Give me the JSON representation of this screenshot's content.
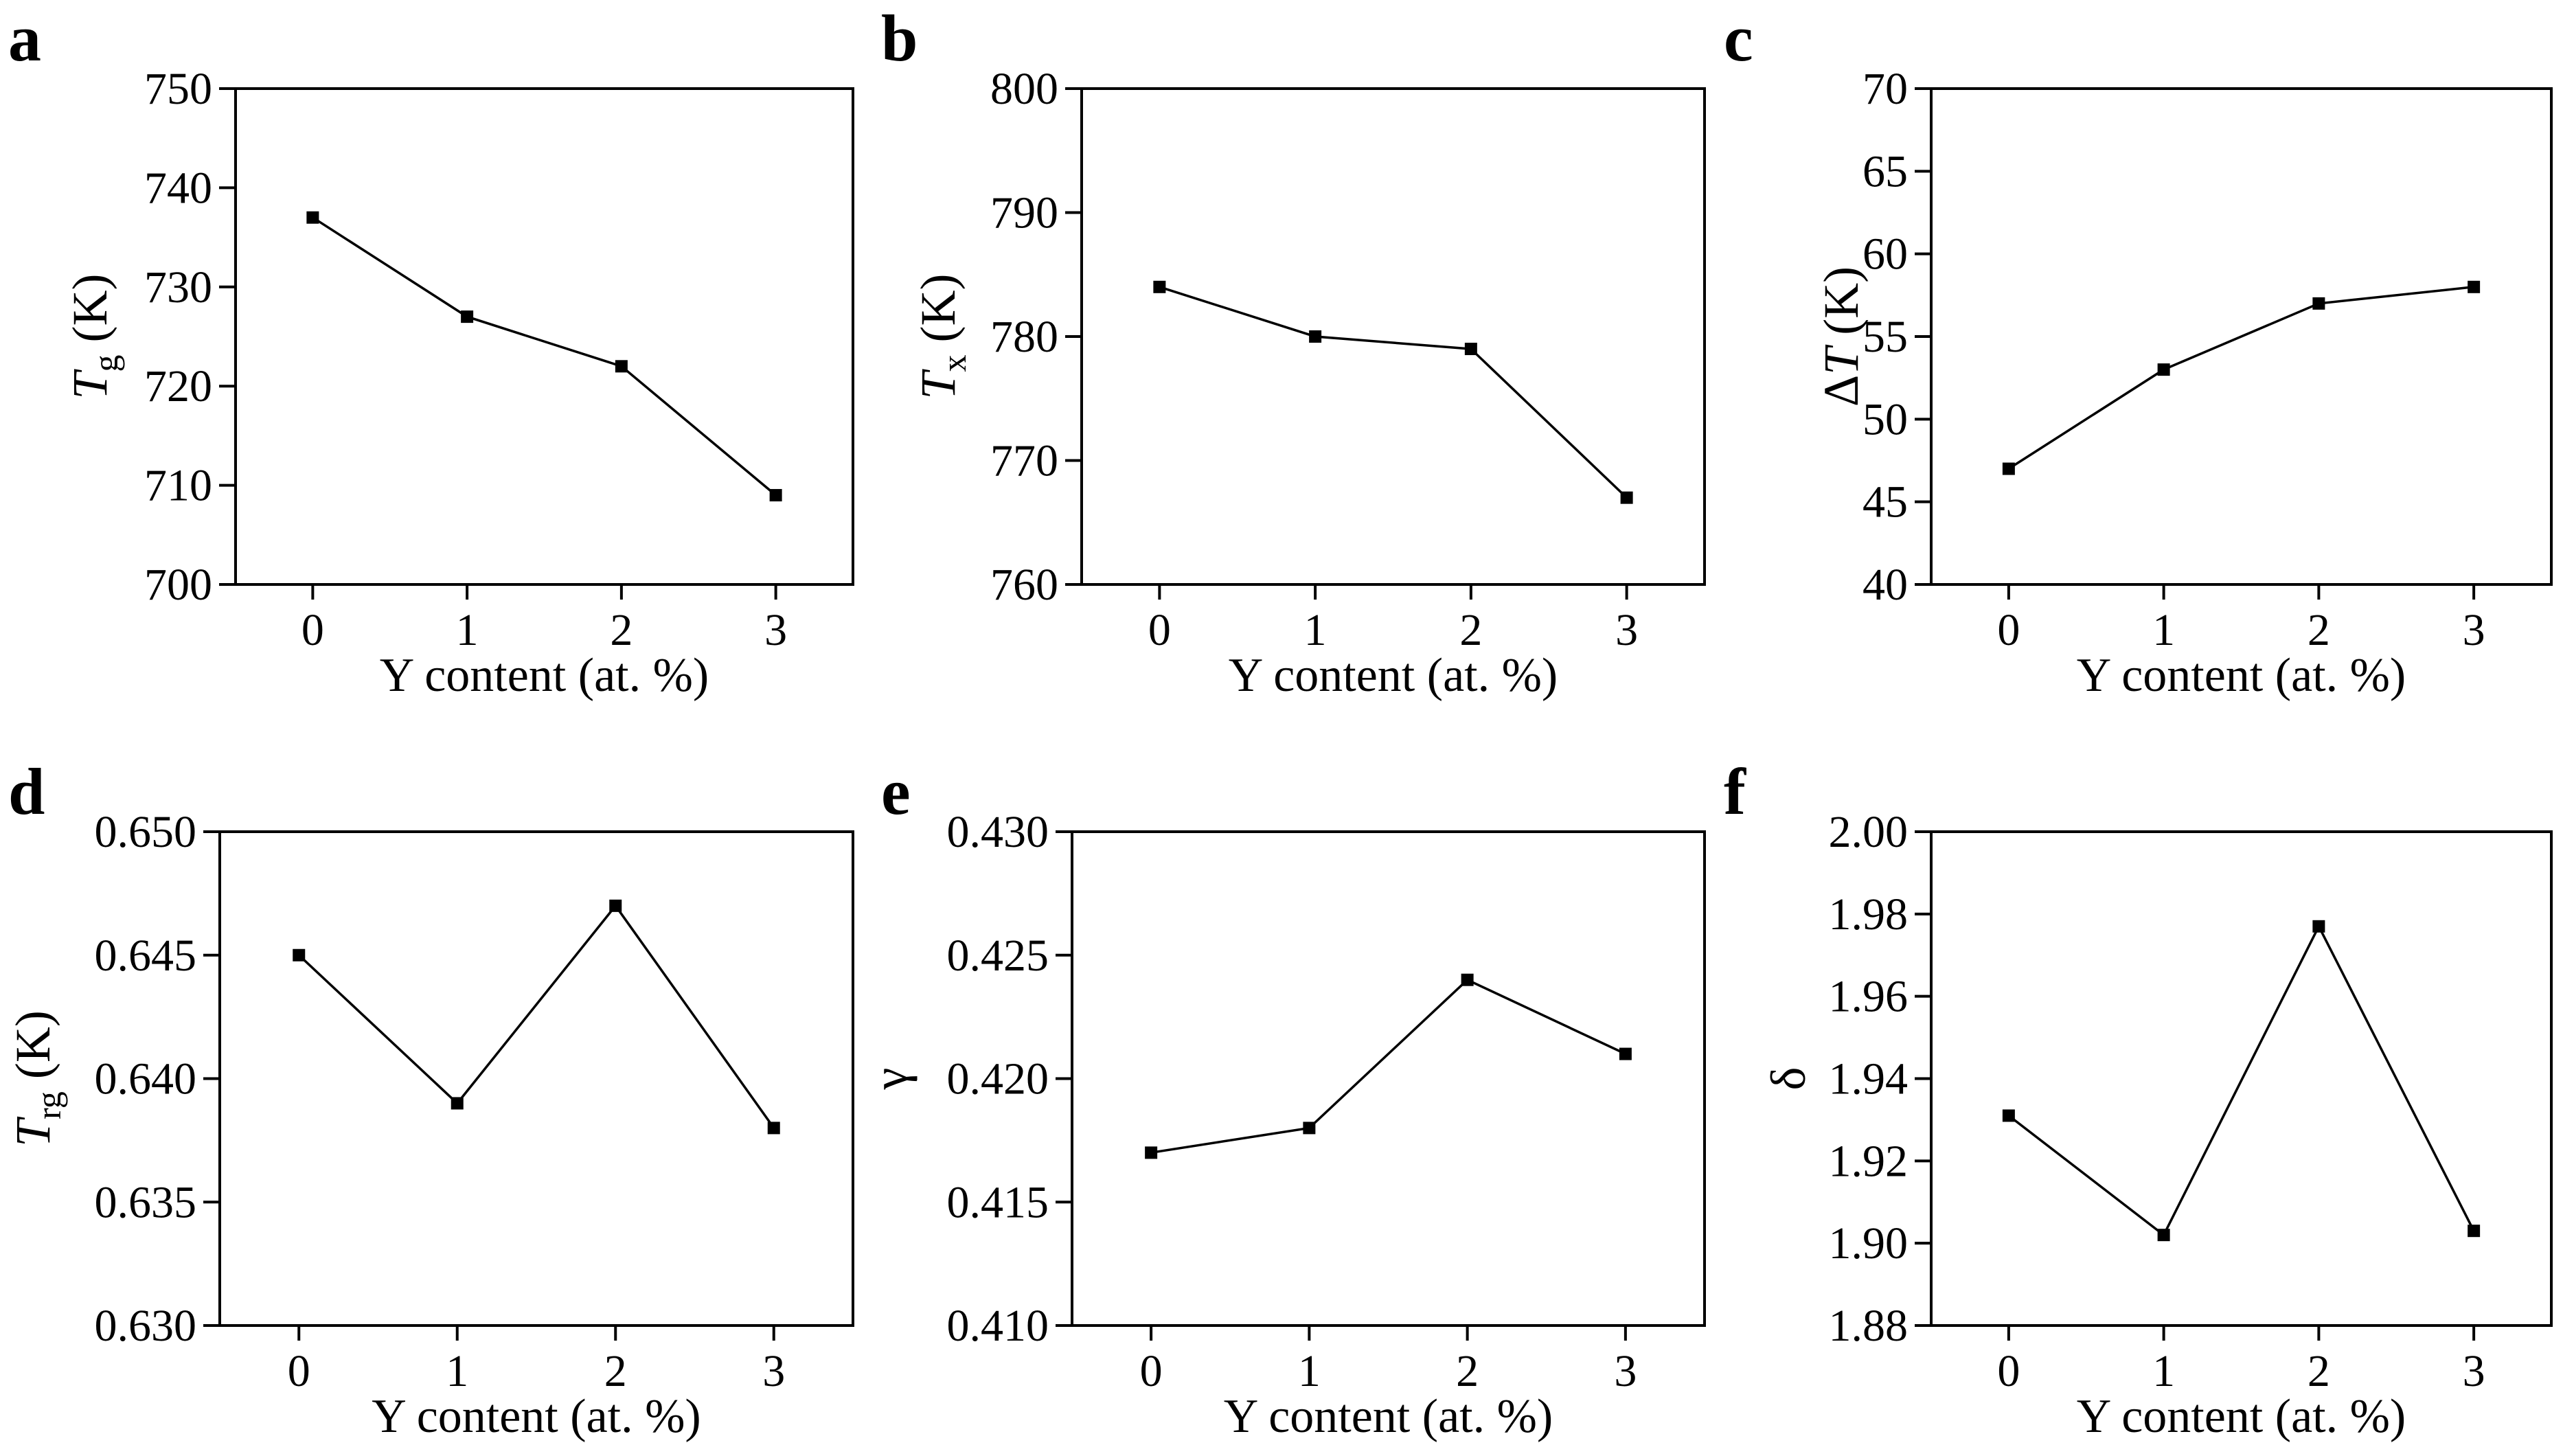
{
  "chart_data": [
    {
      "type": "line",
      "panel": "a",
      "x": [
        0,
        1,
        2,
        3
      ],
      "values": [
        737,
        727,
        722,
        709
      ],
      "xticks": [
        "0",
        "1",
        "2",
        "3"
      ],
      "yticks": [
        "700",
        "710",
        "720",
        "730",
        "740",
        "750"
      ],
      "ylim": [
        700,
        750
      ],
      "xlabel": "Y content (at. %)",
      "ylabel": {
        "main": "T",
        "sub": "g",
        "rest": " (K)"
      }
    },
    {
      "type": "line",
      "panel": "b",
      "x": [
        0,
        1,
        2,
        3
      ],
      "values": [
        784,
        780,
        779,
        767
      ],
      "xticks": [
        "0",
        "1",
        "2",
        "3"
      ],
      "yticks": [
        "760",
        "770",
        "780",
        "790",
        "800"
      ],
      "ylim": [
        760,
        800
      ],
      "xlabel": "Y content (at. %)",
      "ylabel": {
        "main": "T",
        "sub": "x",
        "rest": " (K)"
      }
    },
    {
      "type": "line",
      "panel": "c",
      "x": [
        0,
        1,
        2,
        3
      ],
      "values": [
        47,
        53,
        57,
        58
      ],
      "xticks": [
        "0",
        "1",
        "2",
        "3"
      ],
      "yticks": [
        "40",
        "45",
        "50",
        "55",
        "60",
        "65",
        "70"
      ],
      "ylim": [
        40,
        70
      ],
      "xlabel": "Y content (at. %)",
      "ylabel": {
        "pre": "Δ",
        "main": "T",
        "sub": "",
        "rest": " (K)"
      }
    },
    {
      "type": "line",
      "panel": "d",
      "x": [
        0,
        1,
        2,
        3
      ],
      "values": [
        0.645,
        0.639,
        0.647,
        0.638
      ],
      "xticks": [
        "0",
        "1",
        "2",
        "3"
      ],
      "yticks": [
        "0.630",
        "0.635",
        "0.640",
        "0.645",
        "0.650"
      ],
      "ylim": [
        0.63,
        0.65
      ],
      "xlabel": "Y content (at. %)",
      "ylabel": {
        "main": "T",
        "sub": "rg",
        "rest": " (K)"
      }
    },
    {
      "type": "line",
      "panel": "e",
      "x": [
        0,
        1,
        2,
        3
      ],
      "values": [
        0.417,
        0.418,
        0.424,
        0.421
      ],
      "xticks": [
        "0",
        "1",
        "2",
        "3"
      ],
      "yticks": [
        "0.410",
        "0.415",
        "0.420",
        "0.425",
        "0.430"
      ],
      "ylim": [
        0.41,
        0.43
      ],
      "xlabel": "Y content (at. %)",
      "ylabel": {
        "plain": "γ"
      }
    },
    {
      "type": "line",
      "panel": "f",
      "x": [
        0,
        1,
        2,
        3
      ],
      "values": [
        1.931,
        1.902,
        1.977,
        1.903
      ],
      "xticks": [
        "0",
        "1",
        "2",
        "3"
      ],
      "yticks": [
        "1.88",
        "1.90",
        "1.92",
        "1.94",
        "1.96",
        "1.98",
        "2.00"
      ],
      "ylim": [
        1.88,
        2.0
      ],
      "xlabel": "Y content (at. %)",
      "ylabel": {
        "plain": "δ"
      }
    }
  ]
}
